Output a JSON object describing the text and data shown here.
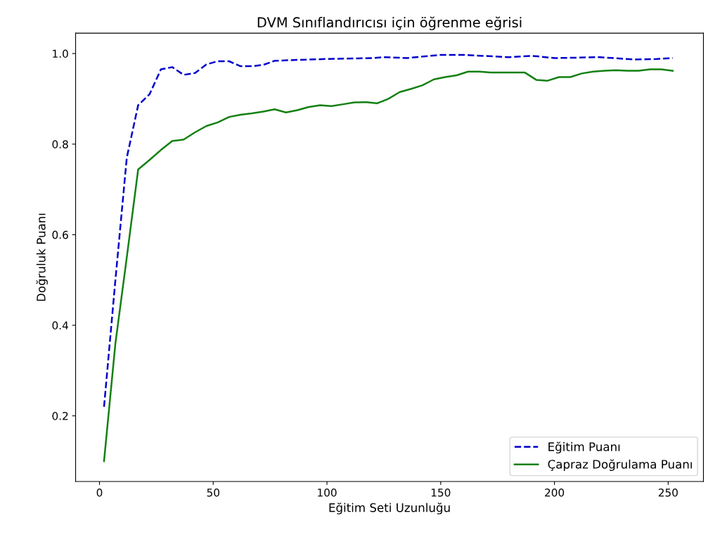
{
  "chart_data": {
    "type": "line",
    "title": "DVM Sınıflandırıcısı için öğrenme eğrisi",
    "xlabel": "Eğitim Seti Uzunluğu",
    "ylabel": "Doğruluk Puanı",
    "xlim": [
      -10.5,
      265.5
    ],
    "ylim": [
      0.055,
      1.045
    ],
    "xticks": [
      0,
      50,
      100,
      150,
      200,
      250
    ],
    "yticks": [
      {
        "value": 0.2,
        "label": "0.2"
      },
      {
        "value": 0.4,
        "label": "0.4"
      },
      {
        "value": 0.6,
        "label": "0.6"
      },
      {
        "value": 0.8,
        "label": "0.8"
      },
      {
        "value": 1.0,
        "label": "1.0"
      }
    ],
    "grid": false,
    "legend": "bottom right",
    "series": [
      {
        "name": "Eğitim Puanı",
        "color": "#0000cc",
        "line_style": "dashed",
        "x": [
          2,
          7,
          12,
          17,
          22,
          27,
          32,
          37,
          42,
          47,
          52,
          57,
          62,
          67,
          72,
          77,
          87,
          100,
          120,
          125,
          135,
          150,
          160,
          180,
          190,
          200,
          220,
          235,
          245,
          252
        ],
        "values": [
          0.22,
          0.5,
          0.77,
          0.886,
          0.91,
          0.965,
          0.97,
          0.953,
          0.957,
          0.976,
          0.983,
          0.983,
          0.972,
          0.972,
          0.975,
          0.984,
          0.986,
          0.988,
          0.99,
          0.992,
          0.99,
          0.997,
          0.997,
          0.992,
          0.995,
          0.99,
          0.992,
          0.987,
          0.988,
          0.99
        ]
      },
      {
        "name": "Çapraz Doğrulama Puanı",
        "color": "#138013",
        "line_style": "solid",
        "x": [
          2,
          7,
          12,
          17,
          22,
          27,
          32,
          37,
          42,
          47,
          52,
          57,
          62,
          67,
          72,
          77,
          82,
          87,
          92,
          97,
          102,
          107,
          112,
          117,
          122,
          127,
          132,
          137,
          142,
          147,
          152,
          157,
          162,
          167,
          172,
          177,
          182,
          187,
          192,
          197,
          202,
          207,
          212,
          217,
          222,
          227,
          232,
          237,
          242,
          247,
          252
        ],
        "values": [
          0.1,
          0.36,
          0.55,
          0.744,
          0.765,
          0.787,
          0.807,
          0.81,
          0.826,
          0.84,
          0.848,
          0.86,
          0.865,
          0.868,
          0.872,
          0.877,
          0.87,
          0.875,
          0.882,
          0.886,
          0.884,
          0.888,
          0.892,
          0.893,
          0.89,
          0.9,
          0.915,
          0.922,
          0.93,
          0.943,
          0.948,
          0.952,
          0.96,
          0.96,
          0.958,
          0.958,
          0.958,
          0.958,
          0.942,
          0.94,
          0.948,
          0.948,
          0.956,
          0.96,
          0.962,
          0.963,
          0.962,
          0.962,
          0.965,
          0.965,
          0.962
        ]
      }
    ]
  }
}
